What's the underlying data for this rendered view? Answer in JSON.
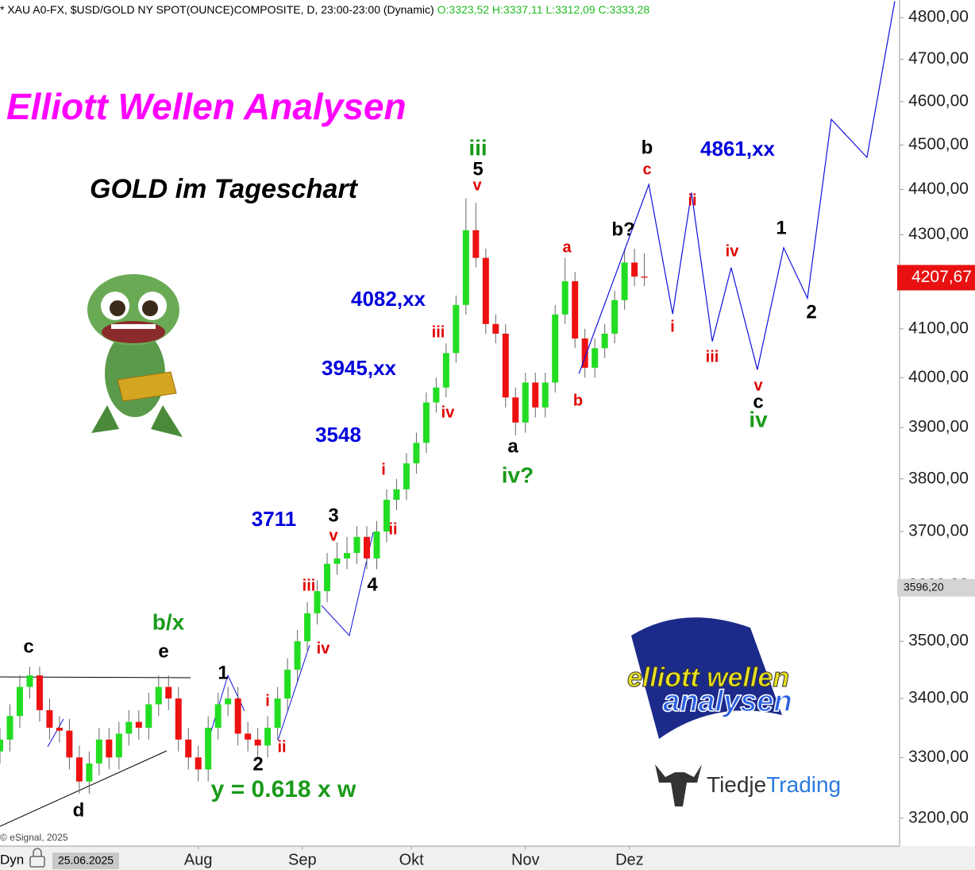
{
  "header": {
    "symbol": "* XAU A0-FX, $USD/GOLD NY SPOT(OUNCE)COMPOSITE, D, 23:00-23:00 (Dynamic)",
    "ohlc": "O:3323,52 H:3337,11 L:3312,09 C:3333,28"
  },
  "chart_data": {
    "type": "candlestick",
    "title": "Elliott Wellen Analysen",
    "subtitle": "GOLD im Tageschart",
    "log_scale": true,
    "grid": false,
    "up_color": "#22dd22",
    "down_color": "#ee1111",
    "x": [
      0,
      2,
      4,
      6,
      8,
      10,
      12,
      14,
      16,
      18,
      20,
      22,
      24,
      26,
      28,
      30,
      32,
      34,
      36,
      38,
      40,
      42,
      44,
      46,
      48,
      50,
      52,
      54,
      56,
      58,
      60,
      62,
      64,
      66,
      68,
      70,
      72,
      74,
      76,
      78,
      80,
      82,
      84,
      86,
      88,
      90,
      92,
      94,
      96,
      98,
      100,
      102,
      104,
      106,
      108,
      110,
      112,
      114,
      116,
      118,
      120,
      122,
      124,
      126,
      128,
      130
    ],
    "open": [
      3310,
      3330,
      3370,
      3420,
      3440,
      3380,
      3350,
      3345,
      3300,
      3260,
      3290,
      3330,
      3300,
      3340,
      3360,
      3350,
      3390,
      3420,
      3400,
      3330,
      3300,
      3280,
      3350,
      3390,
      3400,
      3340,
      3330,
      3320,
      3350,
      3400,
      3450,
      3500,
      3550,
      3590,
      3640,
      3650,
      3660,
      3690,
      3650,
      3700,
      3760,
      3780,
      3830,
      3870,
      3950,
      3980,
      4050,
      4150,
      4310,
      4250,
      4110,
      4090,
      3960,
      3910,
      3990,
      3940,
      3990,
      4130,
      4200,
      4080,
      4020,
      4060,
      4090,
      4160,
      4240,
      4210
    ],
    "high": [
      3350,
      3390,
      3440,
      3455,
      3455,
      3400,
      3370,
      3365,
      3320,
      3310,
      3350,
      3350,
      3360,
      3380,
      3380,
      3410,
      3440,
      3440,
      3420,
      3350,
      3320,
      3370,
      3410,
      3420,
      3420,
      3360,
      3350,
      3370,
      3420,
      3470,
      3520,
      3570,
      3610,
      3660,
      3680,
      3690,
      3710,
      3710,
      3720,
      3780,
      3800,
      3850,
      3890,
      3970,
      4000,
      4070,
      4170,
      4380,
      4370,
      4270,
      4130,
      4110,
      3980,
      4010,
      4010,
      4010,
      4150,
      4250,
      4220,
      4100,
      4080,
      4110,
      4180,
      4270,
      4270,
      4260
    ],
    "low": [
      3290,
      3310,
      3350,
      3400,
      3360,
      3330,
      3325,
      3280,
      3240,
      3240,
      3270,
      3280,
      3280,
      3320,
      3330,
      3330,
      3370,
      3380,
      3310,
      3280,
      3260,
      3260,
      3330,
      3370,
      3320,
      3310,
      3300,
      3300,
      3330,
      3380,
      3430,
      3480,
      3530,
      3570,
      3620,
      3630,
      3640,
      3630,
      3630,
      3680,
      3740,
      3760,
      3810,
      3850,
      3930,
      3960,
      4030,
      4130,
      4230,
      4090,
      4070,
      3940,
      3885,
      3890,
      3920,
      3920,
      3970,
      4110,
      4060,
      4000,
      4000,
      4040,
      4070,
      4140,
      4190,
      4190
    ],
    "close": [
      3330,
      3370,
      3420,
      3440,
      3380,
      3350,
      3345,
      3300,
      3260,
      3290,
      3330,
      3300,
      3340,
      3360,
      3350,
      3390,
      3420,
      3400,
      3330,
      3300,
      3280,
      3350,
      3390,
      3400,
      3340,
      3330,
      3320,
      3350,
      3400,
      3450,
      3500,
      3550,
      3590,
      3640,
      3650,
      3660,
      3690,
      3650,
      3700,
      3760,
      3780,
      3830,
      3870,
      3950,
      3980,
      4050,
      4150,
      4310,
      4250,
      4110,
      4090,
      3960,
      3910,
      3990,
      3940,
      3990,
      4130,
      4200,
      4080,
      4020,
      4060,
      4090,
      4160,
      4240,
      4210,
      4207.67
    ],
    "projection": {
      "color": "#1010dd",
      "x": [
        116.8,
        130.9,
        135.7,
        139.5,
        143.7,
        147.5,
        152.8,
        158.1,
        162.9,
        167.7,
        174.9,
        180.5
      ],
      "values": [
        4008,
        4411,
        4131,
        4393,
        4074,
        4229,
        4016,
        4272,
        4164,
        4559,
        4472,
        4840
      ]
    },
    "xlim": [
      0,
      181
    ],
    "xticks": [
      {
        "value": 40,
        "label": "Aug"
      },
      {
        "value": 61,
        "label": "Sep"
      },
      {
        "value": 83,
        "label": "Okt"
      },
      {
        "value": 106,
        "label": "Nov"
      },
      {
        "value": 127,
        "label": "Dez"
      }
    ],
    "ylim": [
      3155,
      4843
    ],
    "yticks": [
      {
        "value": 3200,
        "label": "3200,00"
      },
      {
        "value": 3300,
        "label": "3300,00"
      },
      {
        "value": 3400,
        "label": "3400,00"
      },
      {
        "value": 3500,
        "label": "3500,00"
      },
      {
        "value": 3600,
        "label": "3600,00"
      },
      {
        "value": 3700,
        "label": "3700,00"
      },
      {
        "value": 3800,
        "label": "3800,00"
      },
      {
        "value": 3900,
        "label": "3900,00"
      },
      {
        "value": 4000,
        "label": "4000,00"
      },
      {
        "value": 4100,
        "label": "4100,00"
      },
      {
        "value": 4200,
        "label": "4200,00"
      },
      {
        "value": 4300,
        "label": "4300,00"
      },
      {
        "value": 4400,
        "label": "4400,00"
      },
      {
        "value": 4500,
        "label": "4500,00"
      },
      {
        "value": 4600,
        "label": "4600,00"
      },
      {
        "value": 4700,
        "label": "4700,00"
      },
      {
        "value": 4800,
        "label": "4800,00"
      }
    ],
    "price_labels": [
      {
        "value": 4207.67,
        "label": "4207,67",
        "color": "#e81010"
      },
      {
        "value": 3596.2,
        "label": "3596,20",
        "color": "#d4d4d4"
      }
    ],
    "cursor_date": "25.06.2025",
    "range_label": "Dyn",
    "annotations": [
      {
        "text": "4082,xx",
        "color": "#0000dd"
      },
      {
        "text": "3945,xx",
        "color": "#0000dd"
      },
      {
        "text": "3548",
        "color": "#0000dd"
      },
      {
        "text": "3711",
        "color": "#0000dd"
      },
      {
        "text": "4861,xx",
        "color": "#0000dd"
      },
      {
        "text": "iii",
        "color": "#1a9a1a"
      },
      {
        "text": "5",
        "color": "#000000"
      },
      {
        "text": "v",
        "color": "#e00000"
      },
      {
        "text": "b",
        "color": "#000000"
      },
      {
        "text": "c",
        "color": "#e00000"
      },
      {
        "text": "ii",
        "color": "#e00000"
      },
      {
        "text": "iv",
        "color": "#e00000"
      },
      {
        "text": "1",
        "color": "#000000"
      },
      {
        "text": "2",
        "color": "#000000"
      },
      {
        "text": "i",
        "color": "#e00000"
      },
      {
        "text": "iii",
        "color": "#e00000"
      },
      {
        "text": "v",
        "color": "#e00000"
      },
      {
        "text": "c",
        "color": "#000000"
      },
      {
        "text": "iv",
        "color": "#1a9a1a"
      },
      {
        "text": "a",
        "color": "#e00000"
      },
      {
        "text": "b?",
        "color": "#000000"
      },
      {
        "text": "b",
        "color": "#e00000"
      },
      {
        "text": "iii",
        "color": "#e00000"
      },
      {
        "text": "iv",
        "color": "#e00000"
      },
      {
        "text": "a",
        "color": "#000000"
      },
      {
        "text": "iv?",
        "color": "#1a9a1a"
      },
      {
        "text": "i",
        "color": "#e00000"
      },
      {
        "text": "ii",
        "color": "#e00000"
      },
      {
        "text": "3",
        "color": "#000000"
      },
      {
        "text": "v",
        "color": "#e00000"
      },
      {
        "text": "4",
        "color": "#000000"
      },
      {
        "text": "iii",
        "color": "#e00000"
      },
      {
        "text": "iv",
        "color": "#e00000"
      },
      {
        "text": "b/x",
        "color": "#1a9a1a"
      },
      {
        "text": "e",
        "color": "#000000"
      },
      {
        "text": "c",
        "color": "#000000"
      },
      {
        "text": "1",
        "color": "#000000"
      },
      {
        "text": "i",
        "color": "#e00000"
      },
      {
        "text": "ii",
        "color": "#e00000"
      },
      {
        "text": "2",
        "color": "#000000"
      },
      {
        "text": "d",
        "color": "#000000"
      },
      {
        "text": "y = 0.618 x w",
        "color": "#1a9a1a"
      }
    ]
  },
  "credits": "© eSignal, 2025",
  "logos": {
    "ew_top": "elliott wellen",
    "ew_bottom": "analysen",
    "brand_a": "Tiedje",
    "brand_b": "Trading"
  }
}
